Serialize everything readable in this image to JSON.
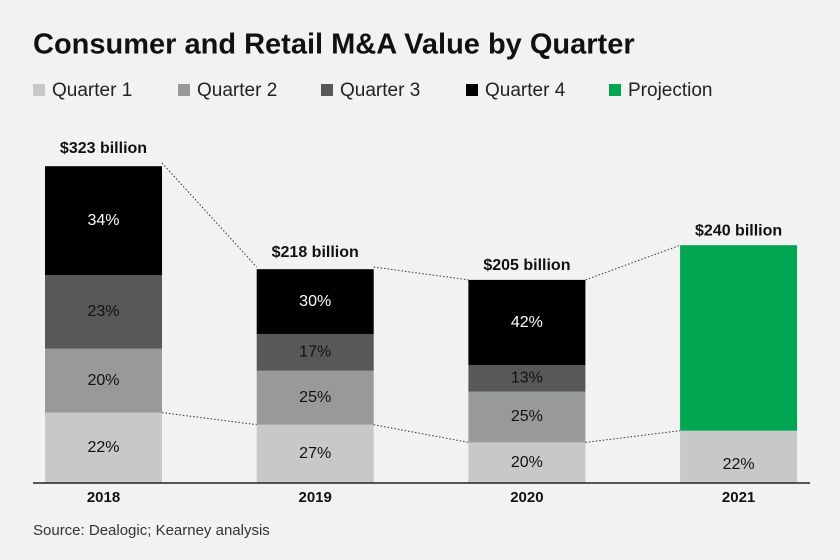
{
  "chart_data": {
    "type": "bar",
    "title": "Consumer and Retail M&A Value by Quarter",
    "source": "Source: Dealogic; Kearney analysis",
    "categories": [
      "2018",
      "2019",
      "2020",
      "2021"
    ],
    "series": [
      {
        "name": "Quarter 1",
        "color": "#c7c8ca",
        "values": [
          22,
          27,
          20,
          22
        ],
        "value_labels": [
          "22%",
          "27%",
          "20%",
          "22%"
        ]
      },
      {
        "name": "Quarter 2",
        "color": "#97999b",
        "values": [
          20,
          25,
          25,
          null
        ],
        "value_labels": [
          "20%",
          "25%",
          "25%",
          null
        ]
      },
      {
        "name": "Quarter 3",
        "color": "#58585a",
        "values": [
          23,
          17,
          13,
          null
        ],
        "value_labels": [
          "23%",
          "17%",
          "13%",
          null
        ]
      },
      {
        "name": "Quarter 4",
        "color": "#000000",
        "values": [
          34,
          30,
          42,
          null
        ],
        "value_labels": [
          "34%",
          "30%",
          "42%",
          null
        ]
      },
      {
        "name": "Projection",
        "color": "#00a651",
        "values": [
          null,
          null,
          null,
          78
        ]
      }
    ],
    "totals": {
      "values": [
        323,
        218,
        205,
        240
      ],
      "value_labels": [
        "$323 billion",
        "$218 billion",
        "$205 billion",
        "$240 billion"
      ]
    }
  }
}
